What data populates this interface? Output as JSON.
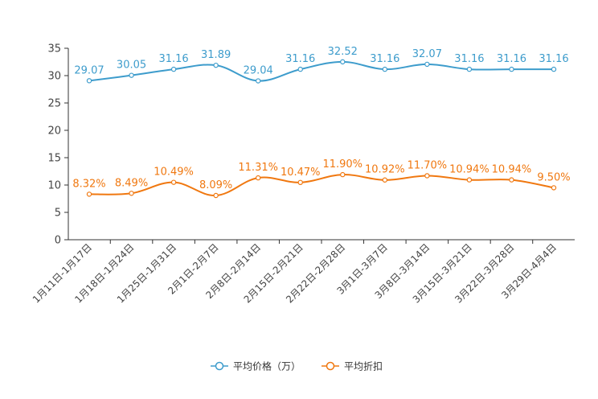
{
  "chart_data": {
    "type": "line",
    "categories": [
      "1月11日-1月17日",
      "1月18日-1月24日",
      "1月25日-1月31日",
      "2月1日-2月7日",
      "2月8日-2月14日",
      "2月15日-2月21日",
      "2月22日-2月28日",
      "3月1日-3月7日",
      "3月8日-3月14日",
      "3月15日-3月21日",
      "3月22日-3月28日",
      "3月29日-4月4日"
    ],
    "y_ticks": [
      "0",
      "5",
      "10",
      "15",
      "20",
      "25",
      "30",
      "35"
    ],
    "ylim": [
      0,
      35
    ],
    "series": [
      {
        "name": "平均价格（万）",
        "color": "#3d9ccc",
        "values": [
          29.07,
          30.05,
          31.16,
          31.89,
          29.04,
          31.16,
          32.52,
          31.16,
          32.07,
          31.16,
          31.16,
          31.16
        ],
        "labels": [
          "29.07",
          "30.05",
          "31.16",
          "31.89",
          "29.04",
          "31.16",
          "32.52",
          "31.16",
          "32.07",
          "31.16",
          "31.16",
          "31.16"
        ]
      },
      {
        "name": "平均折扣",
        "color": "#f07810",
        "values": [
          8.32,
          8.49,
          10.49,
          8.09,
          11.31,
          10.47,
          11.9,
          10.92,
          11.7,
          10.94,
          10.94,
          9.5
        ],
        "labels": [
          "8.32%",
          "8.49%",
          "10.49%",
          "8.09%",
          "11.31%",
          "10.47%",
          "11.90%",
          "10.92%",
          "11.70%",
          "10.94%",
          "10.94%",
          "9.50%"
        ]
      }
    ],
    "legend_position": "bottom"
  }
}
